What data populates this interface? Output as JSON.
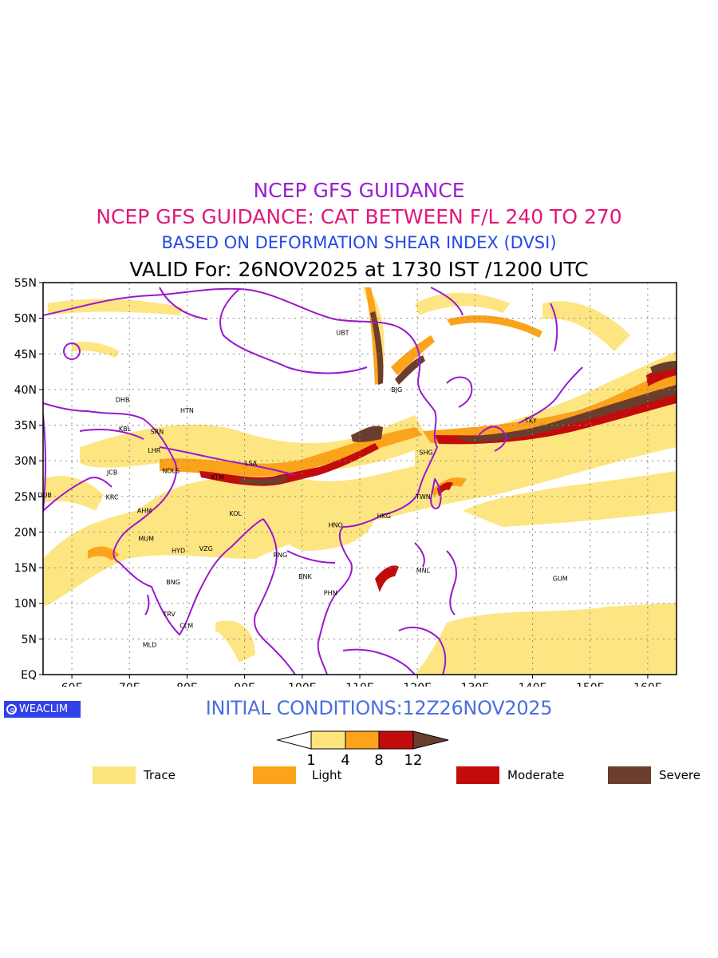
{
  "header": {
    "title1": "NCEP GFS GUIDANCE",
    "title2": "NCEP GFS GUIDANCE: CAT BETWEEN F/L 240 TO 270",
    "title3": "BASED ON DEFORMATION SHEAR INDEX (DVSI)",
    "valid": "VALID For: 26NOV2025 at 1730 IST /1200 UTC"
  },
  "map": {
    "lat_labels": [
      "55N",
      "50N",
      "45N",
      "40N",
      "35N",
      "30N",
      "25N",
      "20N",
      "15N",
      "10N",
      "5N",
      "EQ"
    ],
    "lon_labels": [
      "60E",
      "70E",
      "80E",
      "90E",
      "100E",
      "110E",
      "120E",
      "130E",
      "140E",
      "150E",
      "160E"
    ],
    "stations": [
      {
        "code": "UBT",
        "lon": 107.0,
        "lat": 48.0
      },
      {
        "code": "BJG",
        "lon": 116.4,
        "lat": 40.0
      },
      {
        "code": "DHB",
        "lon": 68.8,
        "lat": 38.6
      },
      {
        "code": "HTN",
        "lon": 80.0,
        "lat": 37.1
      },
      {
        "code": "TKY",
        "lon": 139.7,
        "lat": 35.7
      },
      {
        "code": "KBL",
        "lon": 69.2,
        "lat": 34.5
      },
      {
        "code": "SRN",
        "lon": 74.8,
        "lat": 34.1
      },
      {
        "code": "SHG",
        "lon": 121.5,
        "lat": 31.2
      },
      {
        "code": "LSA",
        "lon": 91.1,
        "lat": 29.7
      },
      {
        "code": "LHR",
        "lon": 74.3,
        "lat": 31.5
      },
      {
        "code": "JCB",
        "lon": 67.0,
        "lat": 28.4
      },
      {
        "code": "NDLS",
        "lon": 77.2,
        "lat": 28.6
      },
      {
        "code": "KTM",
        "lon": 85.3,
        "lat": 27.7
      },
      {
        "code": "DUB",
        "lon": 55.3,
        "lat": 25.2
      },
      {
        "code": "KRC",
        "lon": 67.0,
        "lat": 24.9
      },
      {
        "code": "TWN",
        "lon": 121.0,
        "lat": 25.0
      },
      {
        "code": "AHM",
        "lon": 72.6,
        "lat": 23.0
      },
      {
        "code": "KOL",
        "lon": 88.4,
        "lat": 22.6
      },
      {
        "code": "HKG",
        "lon": 114.2,
        "lat": 22.3
      },
      {
        "code": "HNO",
        "lon": 105.8,
        "lat": 21.0
      },
      {
        "code": "MUM",
        "lon": 72.9,
        "lat": 19.1
      },
      {
        "code": "HYD",
        "lon": 78.5,
        "lat": 17.4
      },
      {
        "code": "VZG",
        "lon": 83.3,
        "lat": 17.7
      },
      {
        "code": "RNG",
        "lon": 96.2,
        "lat": 16.8
      },
      {
        "code": "MNL",
        "lon": 121.0,
        "lat": 14.6
      },
      {
        "code": "BNK",
        "lon": 100.5,
        "lat": 13.8
      },
      {
        "code": "GUM",
        "lon": 144.8,
        "lat": 13.5
      },
      {
        "code": "BNG",
        "lon": 77.6,
        "lat": 13.0
      },
      {
        "code": "PHN",
        "lon": 104.9,
        "lat": 11.5
      },
      {
        "code": "TRV",
        "lon": 76.9,
        "lat": 8.5
      },
      {
        "code": "CLM",
        "lon": 79.9,
        "lat": 6.9
      },
      {
        "code": "MLD",
        "lon": 73.5,
        "lat": 4.2
      }
    ],
    "colors": {
      "trace": "#fde47c",
      "light": "#fba31b",
      "moderate": "#c20c0c",
      "severe": "#6b3d2d",
      "coastline": "#9b17cf",
      "grid": "#8a8a8a"
    }
  },
  "footer": {
    "brand": "WEACLIM",
    "initial": "INITIAL CONDITIONS:12Z26NOV2025",
    "colorbar_ticks": [
      "1",
      "4",
      "8",
      "12"
    ],
    "legend": [
      {
        "label": "Trace",
        "color": "#fde47c"
      },
      {
        "label": "Light",
        "color": "#fba31b"
      },
      {
        "label": "Moderate",
        "color": "#c20c0c"
      },
      {
        "label": "Severe",
        "color": "#6b3d2d"
      }
    ]
  }
}
